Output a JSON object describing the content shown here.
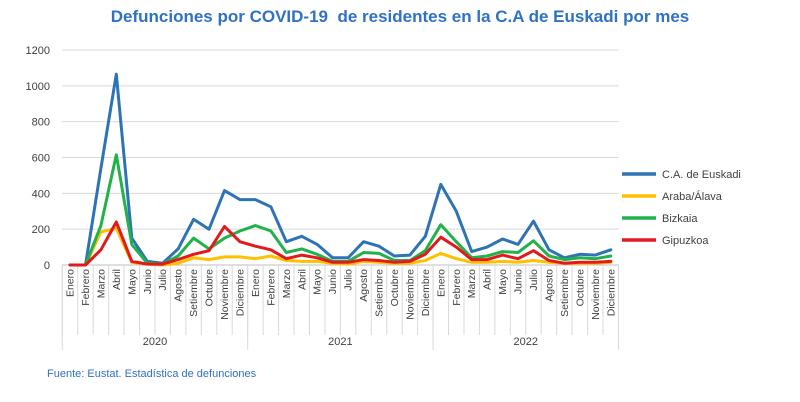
{
  "chart_data": {
    "type": "line",
    "title": "Defunciones por COVID-19  de residentes en la C.A de Euskadi por mes",
    "xlabel": "",
    "ylabel": "",
    "ylim": [
      0,
      1200
    ],
    "yticks": [
      0,
      200,
      400,
      600,
      800,
      1000,
      1200
    ],
    "months": [
      "Enero",
      "Febrero",
      "Marzo",
      "Abril",
      "Mayo",
      "Junio",
      "Julio",
      "Agosto",
      "Setiembre",
      "Octubre",
      "Noviembre",
      "Diciembre"
    ],
    "years": [
      "2020",
      "2021",
      "2022"
    ],
    "series": [
      {
        "name": "C.A. de Euskadi",
        "color": "#2e74b5",
        "values": [
          0,
          0,
          540,
          1065,
          150,
          20,
          10,
          90,
          255,
          200,
          415,
          365,
          365,
          325,
          130,
          160,
          115,
          40,
          40,
          130,
          105,
          50,
          55,
          160,
          450,
          300,
          75,
          100,
          145,
          115,
          245,
          85,
          40,
          60,
          55,
          85
        ]
      },
      {
        "name": "Araba/Álava",
        "color": "#ffc000",
        "values": [
          0,
          0,
          185,
          205,
          15,
          5,
          0,
          10,
          40,
          30,
          45,
          45,
          35,
          50,
          25,
          20,
          20,
          10,
          5,
          20,
          15,
          10,
          10,
          25,
          65,
          35,
          15,
          15,
          20,
          15,
          25,
          15,
          10,
          10,
          10,
          15
        ]
      },
      {
        "name": "Bizkaia",
        "color": "#21b24b",
        "values": [
          0,
          0,
          220,
          615,
          115,
          10,
          5,
          50,
          150,
          90,
          150,
          190,
          220,
          190,
          70,
          90,
          60,
          20,
          20,
          70,
          65,
          25,
          25,
          80,
          225,
          130,
          40,
          50,
          75,
          70,
          135,
          50,
          30,
          40,
          35,
          50
        ]
      },
      {
        "name": "Gipuzkoa",
        "color": "#e31a1c",
        "values": [
          0,
          0,
          85,
          240,
          20,
          5,
          5,
          30,
          60,
          80,
          215,
          130,
          105,
          85,
          35,
          55,
          40,
          15,
          15,
          30,
          25,
          15,
          20,
          60,
          155,
          100,
          30,
          30,
          55,
          35,
          80,
          25,
          10,
          15,
          15,
          20
        ]
      }
    ]
  },
  "source": "Fuente: Eustat. Estadística de defunciones"
}
